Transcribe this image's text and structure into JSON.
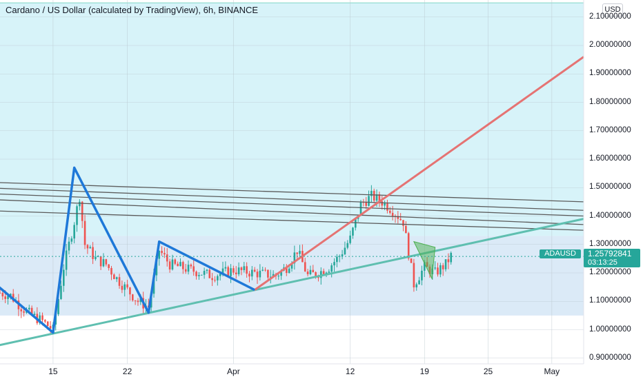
{
  "header": {
    "title": "Cardano / US Dollar (calculated by TradingView), 6h, BINANCE",
    "currency": "USD"
  },
  "colors": {
    "zone_upper": "#d7f3f9",
    "zone_lower": "#dbeaf7",
    "up": "#26a69a",
    "down": "#ef5350",
    "pattern": "#1e78d8",
    "trend_red": "#e57373",
    "trend_green": "#5fbfb0"
  },
  "last_price": {
    "symbol": "ADAUSD",
    "price": "1.25792841",
    "countdown": "03:13:25"
  },
  "chart_data": {
    "type": "candlestick",
    "title": "Cardano / US Dollar (calculated by TradingView), 6h, BINANCE",
    "xlabel": "",
    "ylabel": "",
    "ylim": [
      0.88,
      2.16
    ],
    "xlim": [
      "2021-03-10",
      "2021-05-04"
    ],
    "y_ticks": [
      "0.90000000",
      "1.00000000",
      "1.10000000",
      "1.20000000",
      "1.30000000",
      "1.40000000",
      "1.50000000",
      "1.60000000",
      "1.70000000",
      "1.80000000",
      "1.90000000",
      "2.00000000",
      "2.10000000"
    ],
    "x_ticks": [
      {
        "label": "15",
        "date": "2021-03-15"
      },
      {
        "label": "22",
        "date": "2021-03-22"
      },
      {
        "label": "Apr",
        "date": "2021-04-01"
      },
      {
        "label": "12",
        "date": "2021-04-12"
      },
      {
        "label": "19",
        "date": "2021-04-19"
      },
      {
        "label": "25",
        "date": "2021-04-25"
      },
      {
        "label": "May",
        "date": "2021-05-01"
      }
    ],
    "zones": [
      {
        "from": 1.33,
        "to": 2.15,
        "color": "#d7f3f9"
      },
      {
        "from": 1.05,
        "to": 1.33,
        "color": "#dbeaf7"
      }
    ],
    "close_path": [
      [
        "2021-03-10",
        1.13
      ],
      [
        "2021-03-11",
        1.12
      ],
      [
        "2021-03-12",
        1.08
      ],
      [
        "2021-03-13",
        1.05
      ],
      [
        "2021-03-14",
        1.03
      ],
      [
        "2021-03-15",
        1.0
      ],
      [
        "2021-03-16",
        1.22
      ],
      [
        "2021-03-17",
        1.38
      ],
      [
        "2021-03-17.5",
        1.47
      ],
      [
        "2021-03-18",
        1.3
      ],
      [
        "2021-03-19",
        1.25
      ],
      [
        "2021-03-20",
        1.23
      ],
      [
        "2021-03-21",
        1.18
      ],
      [
        "2021-03-22",
        1.14
      ],
      [
        "2021-03-23",
        1.1
      ],
      [
        "2021-03-24",
        1.08
      ],
      [
        "2021-03-25",
        1.28
      ],
      [
        "2021-03-26",
        1.23
      ],
      [
        "2021-03-28",
        1.21
      ],
      [
        "2021-03-30",
        1.19
      ],
      [
        "2021-04-01",
        1.21
      ],
      [
        "2021-04-03",
        1.2
      ],
      [
        "2021-04-05",
        1.19
      ],
      [
        "2021-04-06",
        1.22
      ],
      [
        "2021-04-07",
        1.28
      ],
      [
        "2021-04-08",
        1.19
      ],
      [
        "2021-04-09",
        1.2
      ],
      [
        "2021-04-10",
        1.22
      ],
      [
        "2021-04-11",
        1.26
      ],
      [
        "2021-04-12",
        1.32
      ],
      [
        "2021-04-13",
        1.44
      ],
      [
        "2021-04-14",
        1.47
      ],
      [
        "2021-04-15",
        1.45
      ],
      [
        "2021-04-16",
        1.42
      ],
      [
        "2021-04-17",
        1.38
      ],
      [
        "2021-04-18",
        1.16
      ],
      [
        "2021-04-19",
        1.22
      ],
      [
        "2021-04-20",
        1.2
      ],
      [
        "2021-04-21",
        1.23
      ],
      [
        "2021-04-21.5",
        1.26
      ]
    ],
    "annotations": {
      "zigzag": [
        [
          "2021-03-08",
          1.21
        ],
        [
          "2021-03-15",
          0.99
        ],
        [
          "2021-03-17",
          1.57
        ],
        [
          "2021-03-24",
          1.06
        ],
        [
          "2021-03-25",
          1.31
        ],
        [
          "2021-04-03",
          1.14
        ]
      ],
      "red_trend": [
        [
          "2021-04-03",
          1.14
        ],
        [
          "2021-05-04",
          1.96
        ]
      ],
      "green_trend": [
        [
          "2021-03-08",
          0.93
        ],
        [
          "2021-05-04",
          1.39
        ]
      ],
      "channel_lines": [
        [
          [
            "2021-03-08",
            1.52
          ],
          [
            "2021-05-04",
            1.45
          ]
        ],
        [
          [
            "2021-03-08",
            1.5
          ],
          [
            "2021-05-04",
            1.42
          ]
        ],
        [
          [
            "2021-03-08",
            1.48
          ],
          [
            "2021-05-04",
            1.4
          ]
        ],
        [
          [
            "2021-03-08",
            1.46
          ],
          [
            "2021-05-04",
            1.37
          ]
        ],
        [
          [
            "2021-03-08",
            1.42
          ],
          [
            "2021-05-04",
            1.35
          ]
        ]
      ],
      "triangle": [
        [
          "2021-04-18",
          1.31
        ],
        [
          "2021-04-20",
          1.29
        ],
        [
          "2021-04-19.7",
          1.18
        ]
      ]
    }
  }
}
